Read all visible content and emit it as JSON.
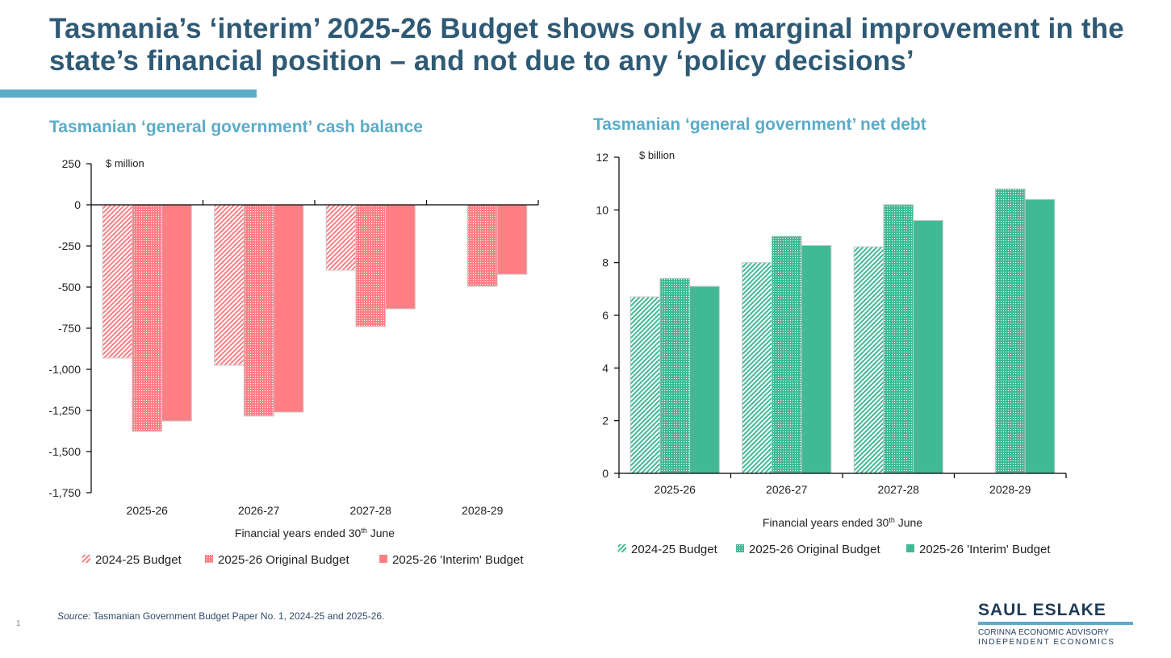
{
  "title": "Tasmania’s ‘interim’ 2025-26 Budget shows only a marginal improvement in the state’s financial position – and not due to any ‘policy decisions’",
  "footer": {
    "source_label": "Source:",
    "source_text": " Tasmanian Government Budget Paper No. 1, 2024-25 and 2025-26.",
    "page_number": "1"
  },
  "logo": {
    "name": "SAUL ESLAKE",
    "line1": "CORINNA ECONOMIC ADVISORY",
    "line2": "INDEPENDENT ECONOMICS"
  },
  "colors": {
    "title": "#2f5a75",
    "accent": "#5bacc8",
    "red": "#ff7f84",
    "green": "#41b994"
  },
  "chart_data": [
    {
      "type": "bar",
      "title": "Tasmanian ‘general government’ cash balance",
      "unit_label": "$ million",
      "xlabel": "Financial years ended 30th June",
      "ylabel": "",
      "categories": [
        "2025-26",
        "2026-27",
        "2027-28",
        "2028-29"
      ],
      "ylim": [
        -1750,
        250
      ],
      "yticks": [
        250,
        0,
        -250,
        -500,
        -750,
        -1000,
        -1250,
        -1500,
        -1750
      ],
      "ytick_labels": [
        "250",
        "0",
        "-250",
        "-500",
        "-750",
        "-1,000",
        "-1,250",
        "-1,500",
        "-1,750"
      ],
      "grid": false,
      "legend": "bottom",
      "series": [
        {
          "name": "2024-25 Budget",
          "pattern": "diagonal",
          "values": [
            -931,
            -975,
            -397,
            null
          ]
        },
        {
          "name": "2025-26 Original Budget",
          "pattern": "dotted",
          "values": [
            -1377,
            -1284,
            -740,
            -495
          ]
        },
        {
          "name": "2025-26 'Interim' Budget",
          "pattern": "solid",
          "values": [
            -1314,
            -1260,
            -632,
            -422
          ]
        }
      ]
    },
    {
      "type": "bar",
      "title": "Tasmanian ‘general government’ net debt",
      "unit_label": "$ billion",
      "xlabel": "Financial years ended 30th June",
      "ylabel": "",
      "categories": [
        "2025-26",
        "2026-27",
        "2027-28",
        "2028-29"
      ],
      "ylim": [
        0,
        12
      ],
      "yticks": [
        12,
        10,
        8,
        6,
        4,
        2,
        0
      ],
      "ytick_labels": [
        "12",
        "10",
        "8",
        "6",
        "4",
        "2",
        "0"
      ],
      "grid": false,
      "legend": "bottom",
      "series": [
        {
          "name": "2024-25 Budget",
          "pattern": "diagonal",
          "values": [
            6.7,
            8.0,
            8.6,
            null
          ]
        },
        {
          "name": "2025-26 Original Budget",
          "pattern": "dotted",
          "values": [
            7.4,
            9.0,
            10.2,
            10.8
          ]
        },
        {
          "name": "2025-26 'Interim' Budget",
          "pattern": "solid",
          "values": [
            7.1,
            8.65,
            9.6,
            10.4
          ]
        }
      ]
    }
  ]
}
